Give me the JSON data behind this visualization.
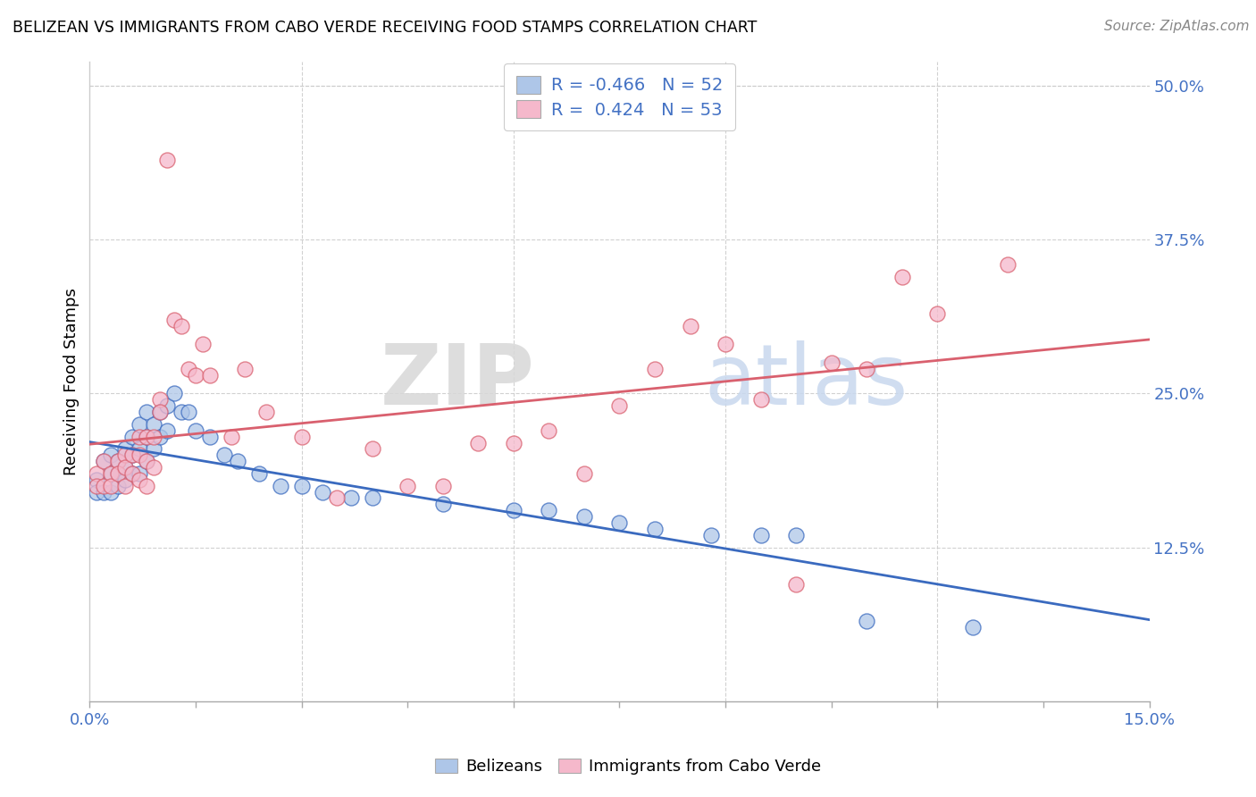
{
  "title": "BELIZEAN VS IMMIGRANTS FROM CABO VERDE RECEIVING FOOD STAMPS CORRELATION CHART",
  "source": "Source: ZipAtlas.com",
  "xlabel_belizeans": "Belizeans",
  "xlabel_caboverde": "Immigrants from Cabo Verde",
  "ylabel": "Receiving Food Stamps",
  "xmin": 0.0,
  "xmax": 0.15,
  "ymin": 0.0,
  "ymax": 0.52,
  "yticks": [
    0.125,
    0.25,
    0.375,
    0.5
  ],
  "ytick_labels": [
    "12.5%",
    "25.0%",
    "37.5%",
    "50.0%"
  ],
  "legend_r_blue": "-0.466",
  "legend_n_blue": "52",
  "legend_r_pink": "0.424",
  "legend_n_pink": "53",
  "blue_color": "#aec6e8",
  "pink_color": "#f5b8cb",
  "line_blue": "#3a6abf",
  "line_pink": "#d9606e",
  "watermark_zip": "ZIP",
  "watermark_atlas": "atlas",
  "blue_x": [
    0.001,
    0.001,
    0.002,
    0.002,
    0.003,
    0.003,
    0.003,
    0.004,
    0.004,
    0.004,
    0.005,
    0.005,
    0.005,
    0.006,
    0.006,
    0.006,
    0.007,
    0.007,
    0.007,
    0.008,
    0.008,
    0.008,
    0.009,
    0.009,
    0.01,
    0.01,
    0.011,
    0.011,
    0.012,
    0.013,
    0.014,
    0.015,
    0.017,
    0.019,
    0.021,
    0.024,
    0.027,
    0.03,
    0.033,
    0.037,
    0.04,
    0.05,
    0.06,
    0.065,
    0.07,
    0.075,
    0.08,
    0.088,
    0.095,
    0.1,
    0.11,
    0.125
  ],
  "blue_y": [
    0.18,
    0.17,
    0.195,
    0.17,
    0.2,
    0.185,
    0.17,
    0.195,
    0.185,
    0.175,
    0.205,
    0.19,
    0.18,
    0.215,
    0.2,
    0.185,
    0.225,
    0.205,
    0.185,
    0.235,
    0.215,
    0.195,
    0.225,
    0.205,
    0.235,
    0.215,
    0.24,
    0.22,
    0.25,
    0.235,
    0.235,
    0.22,
    0.215,
    0.2,
    0.195,
    0.185,
    0.175,
    0.175,
    0.17,
    0.165,
    0.165,
    0.16,
    0.155,
    0.155,
    0.15,
    0.145,
    0.14,
    0.135,
    0.135,
    0.135,
    0.065,
    0.06
  ],
  "pink_x": [
    0.001,
    0.001,
    0.002,
    0.002,
    0.003,
    0.003,
    0.004,
    0.004,
    0.005,
    0.005,
    0.005,
    0.006,
    0.006,
    0.007,
    0.007,
    0.007,
    0.008,
    0.008,
    0.008,
    0.009,
    0.009,
    0.01,
    0.01,
    0.011,
    0.012,
    0.013,
    0.014,
    0.015,
    0.016,
    0.017,
    0.02,
    0.022,
    0.025,
    0.03,
    0.035,
    0.04,
    0.045,
    0.05,
    0.055,
    0.06,
    0.065,
    0.07,
    0.075,
    0.08,
    0.085,
    0.09,
    0.095,
    0.1,
    0.105,
    0.11,
    0.115,
    0.12,
    0.13
  ],
  "pink_y": [
    0.185,
    0.175,
    0.195,
    0.175,
    0.185,
    0.175,
    0.195,
    0.185,
    0.2,
    0.19,
    0.175,
    0.2,
    0.185,
    0.215,
    0.2,
    0.18,
    0.215,
    0.195,
    0.175,
    0.215,
    0.19,
    0.245,
    0.235,
    0.44,
    0.31,
    0.305,
    0.27,
    0.265,
    0.29,
    0.265,
    0.215,
    0.27,
    0.235,
    0.215,
    0.165,
    0.205,
    0.175,
    0.175,
    0.21,
    0.21,
    0.22,
    0.185,
    0.24,
    0.27,
    0.305,
    0.29,
    0.245,
    0.095,
    0.275,
    0.27,
    0.345,
    0.315,
    0.355
  ]
}
